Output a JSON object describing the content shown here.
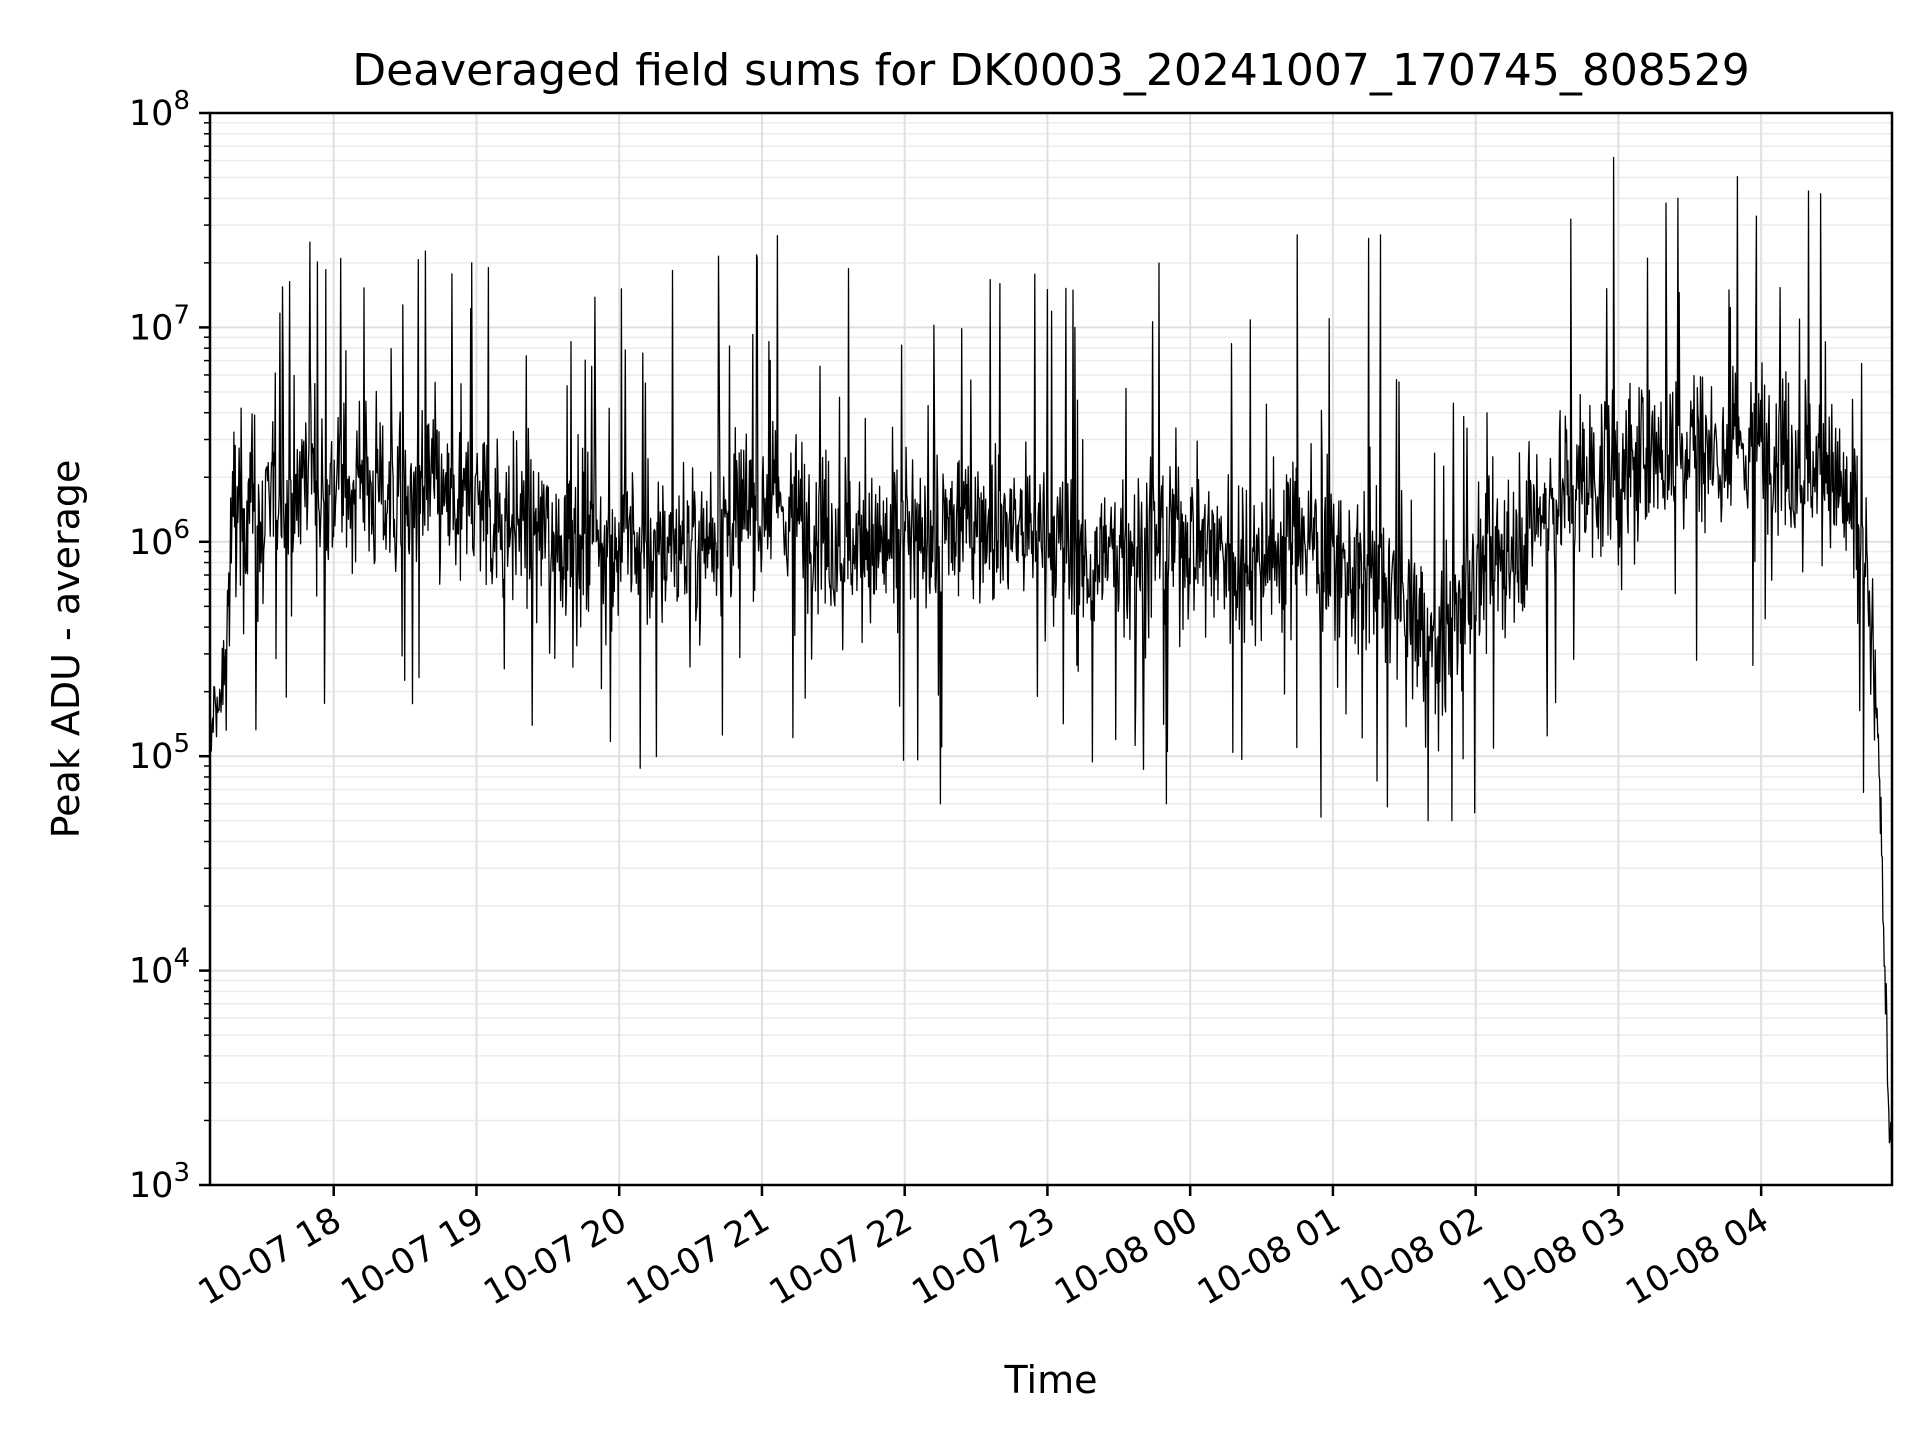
{
  "chart_data": {
    "type": "line",
    "title": "Deaveraged field sums for DK0003_20241007_170745_808529",
    "xlabel": "Time",
    "ylabel": "Peak ADU - average",
    "yscale": "log",
    "ylim": [
      1000,
      100000000
    ],
    "xlim": [
      "2024-10-07 17:08",
      "2024-10-08 04:55"
    ],
    "grid": "major and minor",
    "line_color": "#000000",
    "x_tick_labels": [
      "10-07 18",
      "10-07 19",
      "10-07 20",
      "10-07 21",
      "10-07 22",
      "10-07 23",
      "10-08 00",
      "10-08 01",
      "10-08 02",
      "10-08 03",
      "10-08 04"
    ],
    "x_tick_times": [
      "2024-10-07 18:00",
      "2024-10-07 19:00",
      "2024-10-07 20:00",
      "2024-10-07 21:00",
      "2024-10-07 22:00",
      "2024-10-07 23:00",
      "2024-10-08 00:00",
      "2024-10-08 01:00",
      "2024-10-08 02:00",
      "2024-10-08 03:00",
      "2024-10-08 04:00"
    ],
    "y_tick_values": [
      1000,
      10000,
      100000,
      1000000,
      10000000,
      100000000
    ],
    "y_tick_labels": [
      {
        "base": "10",
        "exp": "3"
      },
      {
        "base": "10",
        "exp": "4"
      },
      {
        "base": "10",
        "exp": "5"
      },
      {
        "base": "10",
        "exp": "6"
      },
      {
        "base": "10",
        "exp": "7"
      },
      {
        "base": "10",
        "exp": "8"
      }
    ],
    "series": [
      {
        "x": [
          "2024-10-07 17:08",
          "2024-10-07 17:10",
          "2024-10-07 17:12",
          "2024-10-07 17:15",
          "2024-10-07 17:18",
          "2024-10-07 17:22",
          "2024-10-07 17:26",
          "2024-10-07 17:30",
          "2024-10-07 17:35",
          "2024-10-07 17:40",
          "2024-10-07 17:45",
          "2024-10-07 17:50",
          "2024-10-07 17:55",
          "2024-10-07 18:00",
          "2024-10-07 18:10",
          "2024-10-07 18:20",
          "2024-10-07 18:30",
          "2024-10-07 18:40",
          "2024-10-07 18:50",
          "2024-10-07 19:00",
          "2024-10-07 19:10",
          "2024-10-07 19:20",
          "2024-10-07 19:30",
          "2024-10-07 19:40",
          "2024-10-07 19:50",
          "2024-10-07 20:00",
          "2024-10-07 20:15",
          "2024-10-07 20:30",
          "2024-10-07 20:45",
          "2024-10-07 21:00",
          "2024-10-07 21:15",
          "2024-10-07 21:30",
          "2024-10-07 21:45",
          "2024-10-07 22:00",
          "2024-10-07 22:15",
          "2024-10-07 22:30",
          "2024-10-07 22:45",
          "2024-10-07 23:00",
          "2024-10-07 23:15",
          "2024-10-07 23:30",
          "2024-10-07 23:45",
          "2024-10-08 00:00",
          "2024-10-08 00:15",
          "2024-10-08 00:30",
          "2024-10-08 00:45",
          "2024-10-08 01:00",
          "2024-10-08 01:15",
          "2024-10-08 01:30",
          "2024-10-08 01:45",
          "2024-10-08 02:00",
          "2024-10-08 02:15",
          "2024-10-08 02:30",
          "2024-10-08 02:45",
          "2024-10-08 03:00",
          "2024-10-08 03:15",
          "2024-10-08 03:30",
          "2024-10-08 03:45",
          "2024-10-08 04:00",
          "2024-10-08 04:15",
          "2024-10-08 04:30",
          "2024-10-08 04:40",
          "2024-10-08 04:45",
          "2024-10-08 04:48",
          "2024-10-08 04:50",
          "2024-10-08 04:52",
          "2024-10-08 04:54"
        ],
        "y": [
          90000,
          200000,
          150000,
          350000,
          1500000,
          1200000,
          2000000,
          900000,
          2000000,
          1500000,
          1800000,
          2500000,
          1600000,
          1800000,
          2000000,
          1700000,
          1500000,
          1800000,
          1400000,
          1600000,
          1300000,
          1200000,
          1100000,
          1000000,
          1200000,
          950000,
          900000,
          1000000,
          1200000,
          1500000,
          1300000,
          1100000,
          900000,
          1000000,
          1100000,
          1300000,
          1200000,
          1000000,
          800000,
          900000,
          1000000,
          1100000,
          900000,
          800000,
          1200000,
          800000,
          700000,
          500000,
          300000,
          700000,
          1000000,
          1500000,
          2000000,
          2000000,
          2500000,
          3000000,
          2500000,
          3000000,
          2500000,
          2000000,
          1200000,
          500000,
          200000,
          60000,
          10000,
          1800
        ]
      }
    ],
    "spikes": [
      {
        "x": "2024-10-07 17:50",
        "y": 25000000
      },
      {
        "x": "2024-10-07 18:58",
        "y": 20000000
      },
      {
        "x": "2024-10-07 19:05",
        "y": 19000000
      },
      {
        "x": "2024-10-07 20:58",
        "y": 21000000
      },
      {
        "x": "2024-10-07 22:40",
        "y": 16000000
      },
      {
        "x": "2024-10-07 23:00",
        "y": 15000000
      },
      {
        "x": "2024-10-08 00:45",
        "y": 27000000
      },
      {
        "x": "2024-10-08 01:15",
        "y": 26000000
      },
      {
        "x": "2024-10-08 01:20",
        "y": 27000000
      },
      {
        "x": "2024-10-08 02:40",
        "y": 32000000
      },
      {
        "x": "2024-10-08 02:58",
        "y": 62000000
      },
      {
        "x": "2024-10-08 03:20",
        "y": 38000000
      },
      {
        "x": "2024-10-08 03:25",
        "y": 40000000
      },
      {
        "x": "2024-10-08 03:58",
        "y": 33000000
      },
      {
        "x": "2024-10-08 04:25",
        "y": 42000000
      },
      {
        "x": "2024-10-08 01:40",
        "y": 50000
      },
      {
        "x": "2024-10-08 01:50",
        "y": 50000
      },
      {
        "x": "2024-10-08 00:55",
        "y": 52000
      },
      {
        "x": "2024-10-07 22:15",
        "y": 60000
      },
      {
        "x": "2024-10-07 23:50",
        "y": 60000
      }
    ]
  }
}
